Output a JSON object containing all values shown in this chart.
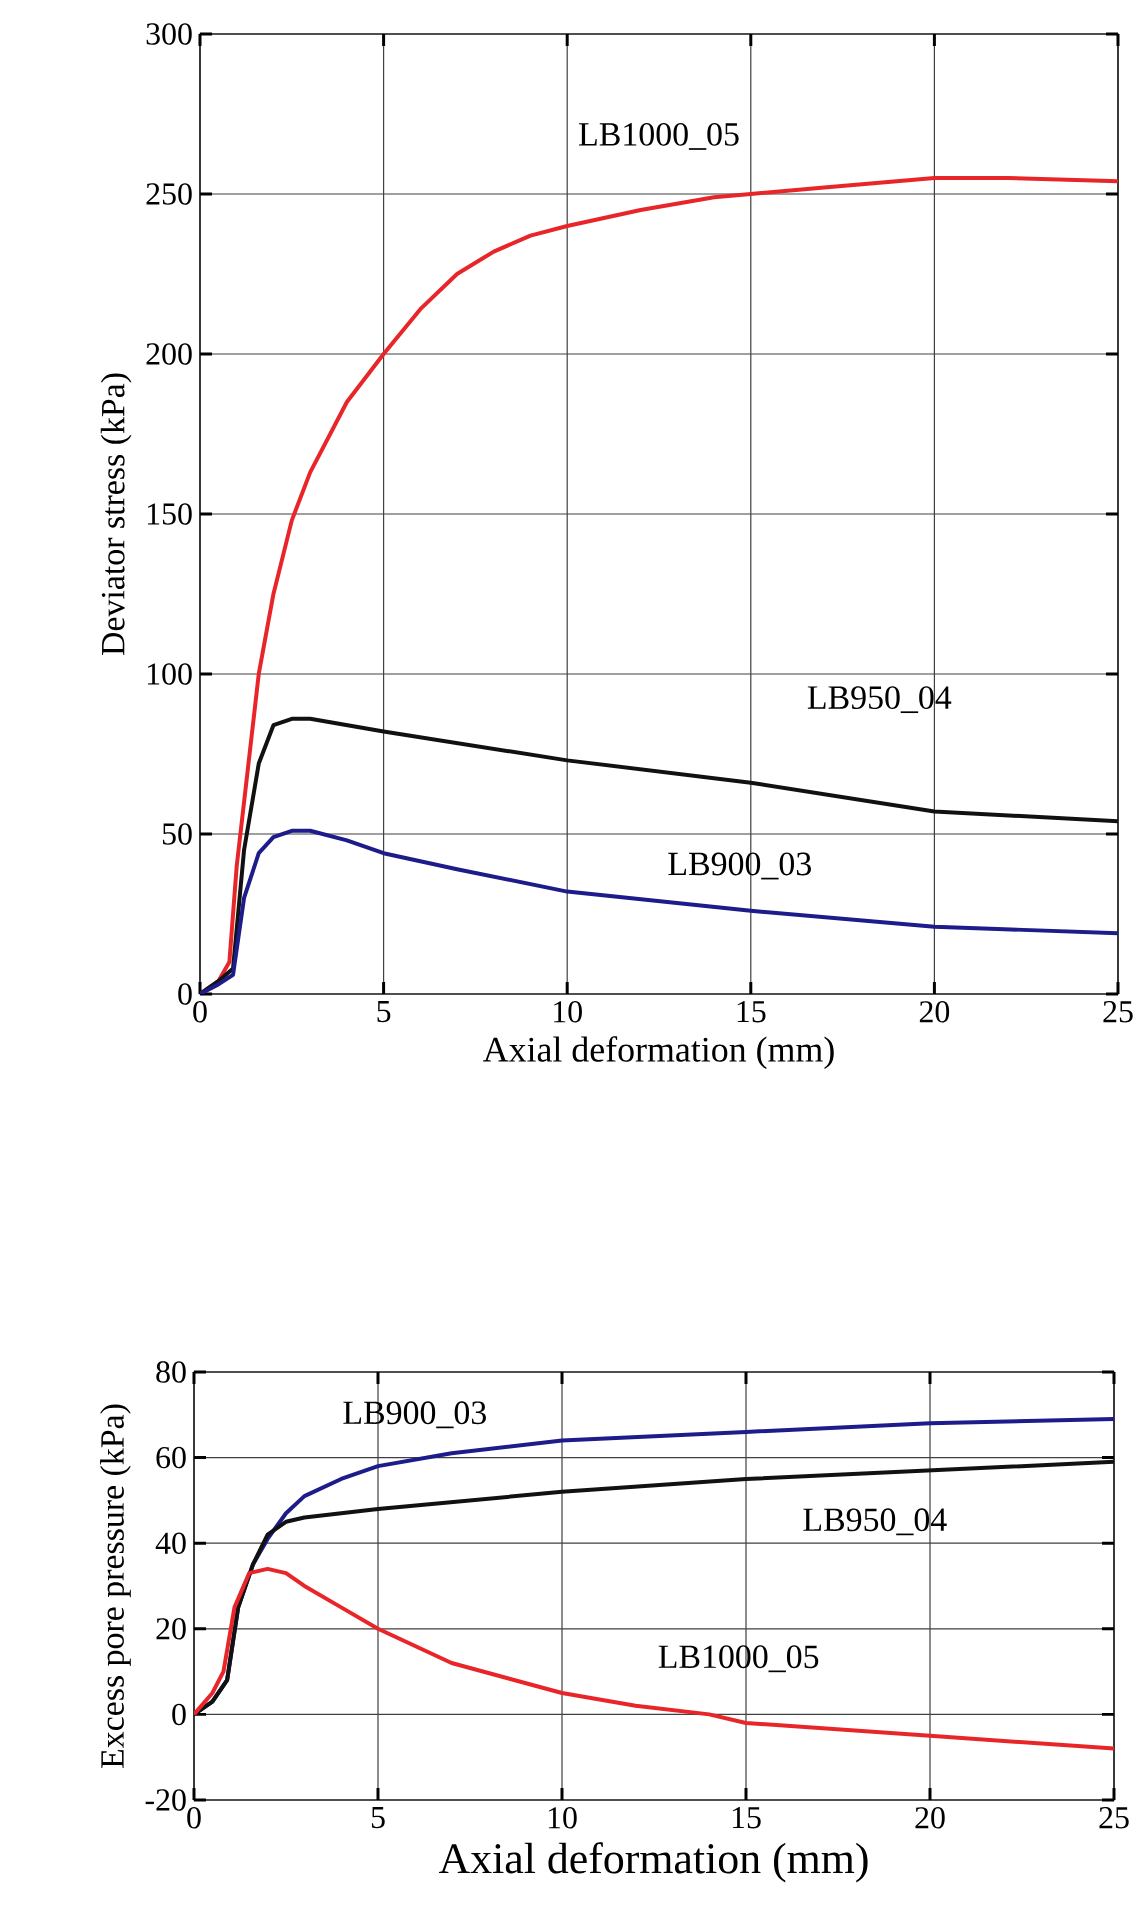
{
  "chart_data": [
    {
      "type": "line",
      "xlabel": "Axial deformation (mm)",
      "ylabel": "Deviator stress (kPa)",
      "xlim": [
        0,
        25
      ],
      "ylim": [
        0,
        300
      ],
      "xticks": [
        0,
        5,
        10,
        15,
        20,
        25
      ],
      "yticks": [
        0,
        50,
        100,
        150,
        200,
        250,
        300
      ],
      "grid": true,
      "series": [
        {
          "name": "LB1000_05",
          "color": "#e8262a",
          "x": [
            0,
            0.5,
            0.8,
            1.0,
            1.3,
            1.6,
            2,
            2.5,
            3,
            4,
            5,
            6,
            7,
            8,
            9,
            10,
            12,
            14,
            15,
            17,
            20,
            22,
            25
          ],
          "values": [
            0,
            4,
            10,
            40,
            70,
            100,
            125,
            148,
            163,
            185,
            200,
            214,
            225,
            232,
            237,
            240,
            245,
            249,
            250,
            252,
            255,
            255,
            254
          ]
        },
        {
          "name": "LB950_04",
          "color": "#111111",
          "x": [
            0,
            0.5,
            0.9,
            1.2,
            1.6,
            2,
            2.5,
            3,
            5,
            10,
            15,
            20,
            25
          ],
          "values": [
            0,
            4,
            8,
            45,
            72,
            84,
            86,
            86,
            82,
            73,
            66,
            57,
            54
          ]
        },
        {
          "name": "LB900_03",
          "color": "#1c1c8a",
          "x": [
            0,
            0.5,
            0.9,
            1.2,
            1.6,
            2,
            2.5,
            3,
            4,
            5,
            7,
            10,
            15,
            20,
            25
          ],
          "values": [
            0,
            3,
            6,
            30,
            44,
            49,
            51,
            51,
            48,
            44,
            39,
            32,
            26,
            21,
            19
          ]
        }
      ]
    },
    {
      "type": "line",
      "xlabel": "Axial deformation (mm)",
      "ylabel": "Excess pore pressure (kPa)",
      "xlim": [
        0,
        25
      ],
      "ylim": [
        -20,
        80
      ],
      "xticks": [
        0,
        5,
        10,
        15,
        20,
        25
      ],
      "yticks": [
        -20,
        0,
        20,
        40,
        60,
        80
      ],
      "grid": true,
      "series": [
        {
          "name": "LB900_03",
          "color": "#1c1c8a",
          "x": [
            0,
            0.5,
            0.9,
            1.2,
            1.6,
            2,
            2.5,
            3,
            4,
            5,
            7,
            10,
            15,
            20,
            25
          ],
          "values": [
            0,
            3,
            8,
            25,
            35,
            41,
            47,
            51,
            55,
            58,
            61,
            64,
            66,
            68,
            69
          ]
        },
        {
          "name": "LB950_04",
          "color": "#111111",
          "x": [
            0,
            0.5,
            0.9,
            1.2,
            1.6,
            2,
            2.5,
            3,
            5,
            10,
            15,
            20,
            25
          ],
          "values": [
            0,
            3,
            8,
            25,
            35,
            42,
            45,
            46,
            48,
            52,
            55,
            57,
            59
          ]
        },
        {
          "name": "LB1000_05",
          "color": "#e8262a",
          "x": [
            0,
            0.5,
            0.8,
            1.1,
            1.5,
            2,
            2.5,
            3,
            4,
            5,
            7,
            10,
            12,
            14,
            15,
            20,
            25
          ],
          "values": [
            0,
            5,
            10,
            25,
            33,
            34,
            33,
            30,
            25,
            20,
            12,
            5,
            2,
            0,
            -2,
            -5,
            -8
          ]
        }
      ]
    }
  ]
}
